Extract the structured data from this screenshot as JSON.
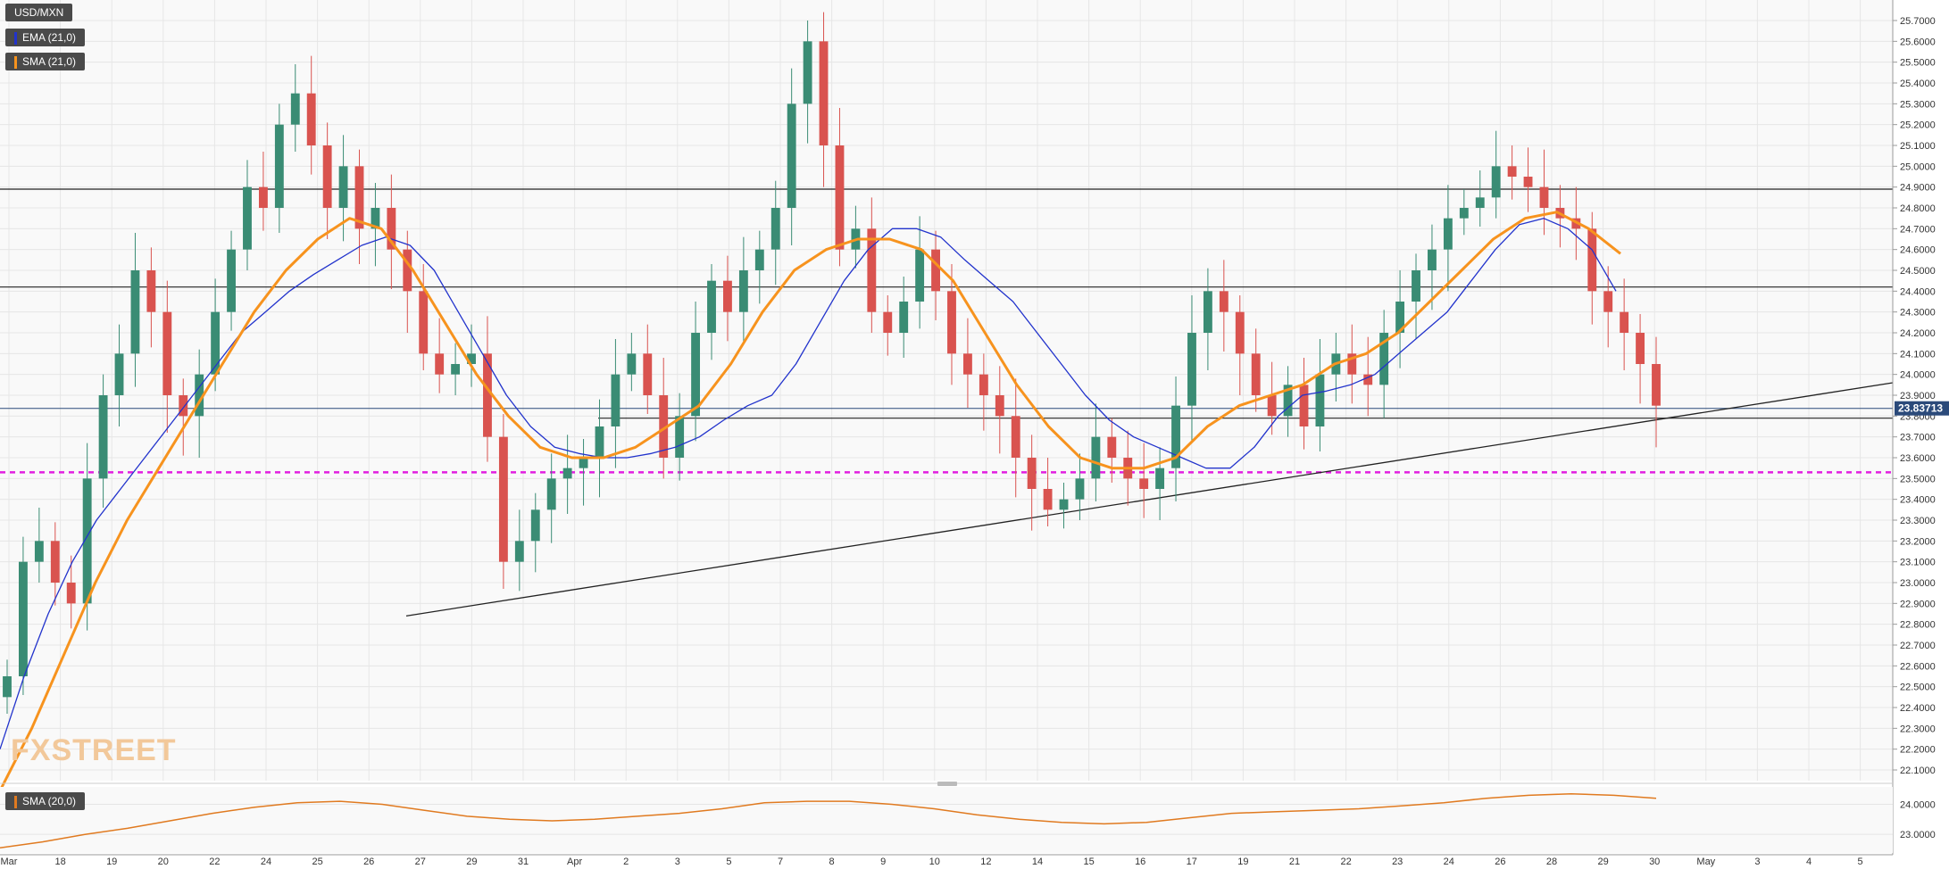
{
  "legend": {
    "symbol": "USD/MXN",
    "ema_label": "EMA (21,0)",
    "sma_label": "SMA (21,0)",
    "ema_color": "#2233cc",
    "sma_color": "#f7931e"
  },
  "lower_panel": {
    "label": "SMA (20,0)",
    "color": "#e07a20",
    "ticks": [
      "24.0000",
      "23.0000"
    ]
  },
  "watermark": "FXSTREET",
  "last_price": "23.83713",
  "colors": {
    "up": "#3a8c74",
    "down": "#d9534f",
    "magenta": "#e21fe0",
    "grid": "#e6e6e6"
  },
  "chart_data": {
    "type": "candlestick",
    "symbol": "USD/MXN",
    "ylim": [
      22.0,
      25.8
    ],
    "y_ticks": [
      "25.7000",
      "25.6000",
      "25.5000",
      "25.4000",
      "25.3000",
      "25.2000",
      "25.1000",
      "25.0000",
      "24.9000",
      "24.8000",
      "24.7000",
      "24.6000",
      "24.5000",
      "24.4000",
      "24.3000",
      "24.2000",
      "24.1000",
      "24.0000",
      "23.9000",
      "23.8000",
      "23.7000",
      "23.6000",
      "23.5000",
      "23.4000",
      "23.3000",
      "23.2000",
      "23.1000",
      "23.0000",
      "22.9000",
      "22.8000",
      "22.7000",
      "22.6000",
      "22.5000",
      "22.4000",
      "22.3000",
      "22.2000",
      "22.1000"
    ],
    "x_ticks": [
      "Mar",
      "18",
      "19",
      "20",
      "22",
      "24",
      "25",
      "26",
      "27",
      "29",
      "31",
      "Apr",
      "2",
      "3",
      "5",
      "7",
      "8",
      "9",
      "10",
      "12",
      "14",
      "15",
      "16",
      "17",
      "19",
      "21",
      "22",
      "23",
      "24",
      "26",
      "28",
      "29",
      "30",
      "May",
      "3",
      "4",
      "5"
    ],
    "horizontal_levels": [
      24.89,
      24.42,
      23.79,
      23.53
    ],
    "current_price": 23.837,
    "trendlines": [
      {
        "from": {
          "x": "Mar 26",
          "y": 22.84
        },
        "to": {
          "x": "Apr 30",
          "y": 23.96
        }
      },
      {
        "from": {
          "x": "Apr 1",
          "y": 23.8
        },
        "to": {
          "x": "Apr 29",
          "y": 23.8
        }
      }
    ],
    "closes": [
      22.55,
      23.1,
      23.2,
      23.0,
      22.9,
      23.5,
      23.9,
      24.1,
      24.5,
      24.3,
      23.9,
      23.8,
      24.0,
      24.3,
      24.6,
      24.9,
      24.8,
      25.2,
      25.35,
      25.1,
      24.8,
      25.0,
      24.7,
      24.8,
      24.6,
      24.4,
      24.1,
      24.0,
      24.05,
      24.1,
      23.7,
      23.1,
      23.2,
      23.35,
      23.5,
      23.55,
      23.6,
      23.75,
      24.0,
      24.1,
      23.9,
      23.6,
      23.8,
      24.2,
      24.45,
      24.3,
      24.5,
      24.6,
      24.8,
      25.3,
      25.6,
      25.1,
      24.6,
      24.7,
      24.3,
      24.2,
      24.35,
      24.6,
      24.4,
      24.1,
      24.0,
      23.9,
      23.8,
      23.6,
      23.45,
      23.35,
      23.4,
      23.5,
      23.7,
      23.6,
      23.5,
      23.45,
      23.55,
      23.85,
      24.2,
      24.4,
      24.3,
      24.1,
      23.9,
      23.8,
      23.95,
      23.75,
      24.0,
      24.1,
      24.0,
      23.95,
      24.2,
      24.35,
      24.5,
      24.6,
      24.75,
      24.8,
      24.85,
      25.0,
      24.95,
      24.9,
      24.8,
      24.75,
      24.7,
      24.4,
      24.3,
      24.2,
      24.05,
      23.85
    ],
    "ema21": [
      22.2,
      22.55,
      22.85,
      23.1,
      23.3,
      23.45,
      23.6,
      23.75,
      23.9,
      24.05,
      24.2,
      24.3,
      24.4,
      24.48,
      24.55,
      24.62,
      24.66,
      24.62,
      24.5,
      24.3,
      24.1,
      23.9,
      23.75,
      23.65,
      23.62,
      23.6,
      23.6,
      23.62,
      23.65,
      23.7,
      23.78,
      23.85,
      23.9,
      24.05,
      24.25,
      24.45,
      24.6,
      24.7,
      24.7,
      24.66,
      24.55,
      24.45,
      24.35,
      24.2,
      24.05,
      23.9,
      23.78,
      23.7,
      23.65,
      23.6,
      23.55,
      23.55,
      23.65,
      23.8,
      23.9,
      23.92,
      23.95,
      24.0,
      24.1,
      24.2,
      24.3,
      24.45,
      24.6,
      24.72,
      24.75,
      24.7,
      24.6,
      24.4
    ],
    "sma21": [
      22.0,
      22.3,
      22.65,
      23.0,
      23.3,
      23.55,
      23.8,
      24.05,
      24.3,
      24.5,
      24.65,
      24.75,
      24.7,
      24.5,
      24.25,
      24.0,
      23.8,
      23.65,
      23.6,
      23.6,
      23.65,
      23.75,
      23.85,
      24.05,
      24.3,
      24.5,
      24.6,
      24.65,
      24.65,
      24.6,
      24.45,
      24.2,
      23.95,
      23.75,
      23.6,
      23.55,
      23.55,
      23.6,
      23.75,
      23.85,
      23.9,
      23.95,
      24.05,
      24.1,
      24.2,
      24.35,
      24.5,
      24.65,
      24.75,
      24.78,
      24.7,
      24.58
    ],
    "lower_sma20": [
      22.55,
      22.75,
      23.0,
      23.2,
      23.45,
      23.7,
      23.9,
      24.05,
      24.1,
      24.0,
      23.8,
      23.6,
      23.5,
      23.45,
      23.5,
      23.6,
      23.7,
      23.85,
      24.05,
      24.1,
      24.1,
      24.0,
      23.85,
      23.65,
      23.5,
      23.4,
      23.35,
      23.4,
      23.55,
      23.7,
      23.75,
      23.8,
      23.85,
      23.95,
      24.05,
      24.2,
      24.3,
      24.35,
      24.3,
      24.2
    ]
  }
}
